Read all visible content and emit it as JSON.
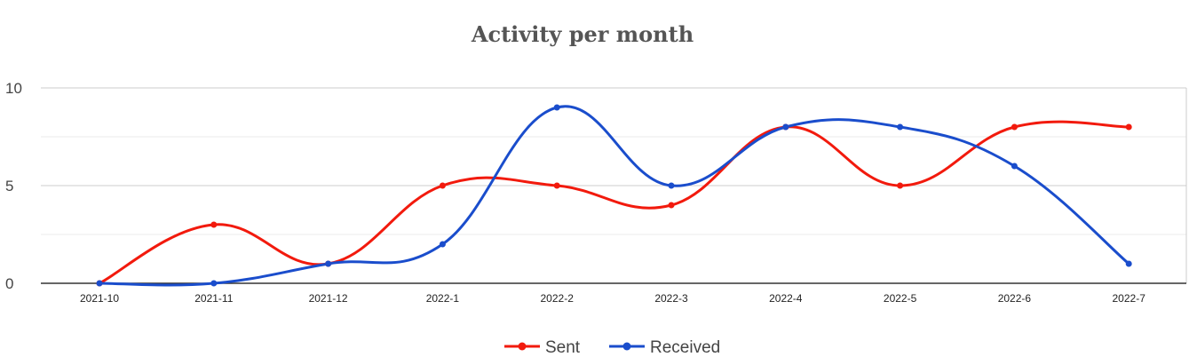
{
  "chart_data": {
    "type": "line",
    "title": "Activity per month",
    "categories": [
      "2021-10",
      "2021-11",
      "2021-12",
      "2022-1",
      "2022-2",
      "2022-3",
      "2022-4",
      "2022-5",
      "2022-6",
      "2022-7"
    ],
    "series": [
      {
        "name": "Sent",
        "color": "#f21a0d",
        "values": [
          0,
          3,
          1,
          5,
          5,
          4,
          8,
          5,
          8,
          8
        ]
      },
      {
        "name": "Received",
        "color": "#1a4dcc",
        "values": [
          0,
          0,
          1,
          2,
          9,
          5,
          8,
          8,
          6,
          1
        ]
      }
    ],
    "ylim": [
      0,
      10
    ],
    "yticks": [
      0,
      5,
      10
    ],
    "smooth": true,
    "grid": true,
    "legend": "bottom"
  }
}
